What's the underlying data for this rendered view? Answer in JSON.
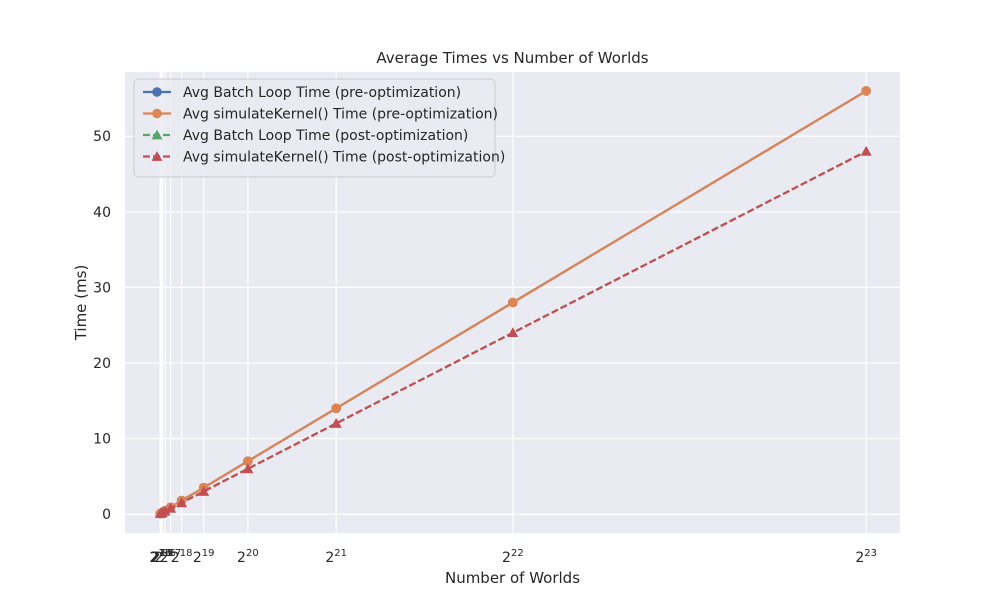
{
  "chart_data": {
    "type": "line",
    "title": "Average Times vs Number of Worlds",
    "xlabel": "Number of Worlds",
    "ylabel": "Time (ms)",
    "x_scale": "linear",
    "x_ticks": [
      {
        "value": 8192,
        "base": "2",
        "exp": "13"
      },
      {
        "value": 16384,
        "base": "2",
        "exp": "14"
      },
      {
        "value": 32768,
        "base": "2",
        "exp": "15"
      },
      {
        "value": 65536,
        "base": "2",
        "exp": "16"
      },
      {
        "value": 131072,
        "base": "2",
        "exp": "17"
      },
      {
        "value": 262144,
        "base": "2",
        "exp": "18"
      },
      {
        "value": 524288,
        "base": "2",
        "exp": "19"
      },
      {
        "value": 1048576,
        "base": "2",
        "exp": "20"
      },
      {
        "value": 2097152,
        "base": "2",
        "exp": "21"
      },
      {
        "value": 4194304,
        "base": "2",
        "exp": "22"
      },
      {
        "value": 8388608,
        "base": "2",
        "exp": "23"
      }
    ],
    "y_ticks": [
      0,
      10,
      20,
      30,
      40,
      50
    ],
    "xlim": [
      -410000,
      8790000
    ],
    "ylim": [
      -2.5,
      58.5
    ],
    "grid": true,
    "legend_position": "top-left",
    "x": [
      8192,
      16384,
      32768,
      65536,
      131072,
      262144,
      524288,
      1048576,
      2097152,
      4194304,
      8388608
    ],
    "series": [
      {
        "name": "Avg Batch Loop Time (pre-optimization)",
        "color": "#4c72b0",
        "linestyle": "solid",
        "marker": "circle",
        "values": [
          0.06,
          0.12,
          0.23,
          0.45,
          0.9,
          1.8,
          3.5,
          7.0,
          14.0,
          28.0,
          56.0
        ]
      },
      {
        "name": "Avg simulateKernel() Time (pre-optimization)",
        "color": "#dd8452",
        "linestyle": "solid",
        "marker": "circle",
        "values": [
          0.06,
          0.12,
          0.23,
          0.45,
          0.9,
          1.8,
          3.5,
          7.0,
          14.0,
          28.0,
          56.0
        ]
      },
      {
        "name": "Avg Batch Loop Time (post-optimization)",
        "color": "#55a868",
        "linestyle": "dashed",
        "marker": "triangle",
        "values": [
          0.05,
          0.1,
          0.19,
          0.38,
          0.76,
          1.5,
          3.0,
          6.0,
          12.0,
          24.0,
          48.0
        ]
      },
      {
        "name": "Avg simulateKernel() Time (post-optimization)",
        "color": "#c44e52",
        "linestyle": "dashed",
        "marker": "triangle",
        "values": [
          0.05,
          0.1,
          0.19,
          0.38,
          0.76,
          1.5,
          3.0,
          6.0,
          12.0,
          24.0,
          48.0
        ]
      }
    ]
  }
}
